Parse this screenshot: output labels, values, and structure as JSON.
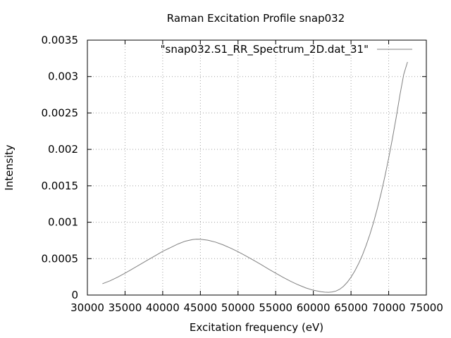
{
  "chart_data": {
    "type": "line",
    "title": "Raman Excitation Profile snap032",
    "xlabel": "Excitation frequency (eV)",
    "ylabel": "Intensity",
    "xlim": [
      30000,
      75000
    ],
    "ylim": [
      0,
      0.0035
    ],
    "xticks": [
      30000,
      35000,
      40000,
      45000,
      50000,
      55000,
      60000,
      65000,
      70000,
      75000
    ],
    "xtick_labels": [
      "30000",
      "35000",
      "40000",
      "45000",
      "50000",
      "55000",
      "60000",
      "65000",
      "70000",
      "75000"
    ],
    "yticks": [
      0,
      0.0005,
      0.001,
      0.0015,
      0.002,
      0.0025,
      0.003,
      0.0035
    ],
    "ytick_labels": [
      "0",
      "0.0005",
      "0.001",
      "0.0015",
      "0.002",
      "0.0025",
      "0.003",
      "0.0035"
    ],
    "grid": true,
    "legend_position": "top-right",
    "series": [
      {
        "name": "\"snap032.S1_RR_Spectrum_2D.dat_31\"",
        "color": "#808080",
        "x": [
          32000,
          33000,
          34000,
          35000,
          36000,
          37000,
          38000,
          39000,
          40000,
          41000,
          42000,
          43000,
          44000,
          44500,
          45000,
          46000,
          47000,
          48000,
          49000,
          50000,
          51000,
          52000,
          53000,
          54000,
          55000,
          56000,
          57000,
          58000,
          59000,
          60000,
          61000,
          61500,
          62000,
          62500,
          63000,
          63500,
          64000,
          64500,
          65000,
          65500,
          66000,
          66500,
          67000,
          67500,
          68000,
          68500,
          69000,
          69500,
          70000,
          70500,
          71000,
          71500,
          72000,
          72500
        ],
        "y": [
          0.000155,
          0.000195,
          0.000245,
          0.0003,
          0.00036,
          0.00042,
          0.00048,
          0.00054,
          0.0006,
          0.00065,
          0.0007,
          0.00074,
          0.000763,
          0.000768,
          0.000766,
          0.000753,
          0.000727,
          0.00069,
          0.000645,
          0.000595,
          0.00054,
          0.000482,
          0.000422,
          0.00036,
          0.0003,
          0.000242,
          0.000188,
          0.00014,
          9.8e-05,
          6.6e-05,
          4.6e-05,
          4e-05,
          3.8e-05,
          4.2e-05,
          5.5e-05,
          8e-05,
          0.00012,
          0.000175,
          0.000245,
          0.00033,
          0.00043,
          0.000545,
          0.00068,
          0.00083,
          0.001,
          0.00119,
          0.0014,
          0.00163,
          0.00188,
          0.00215,
          0.00244,
          0.00275,
          0.00303,
          0.0032
        ]
      }
    ]
  }
}
